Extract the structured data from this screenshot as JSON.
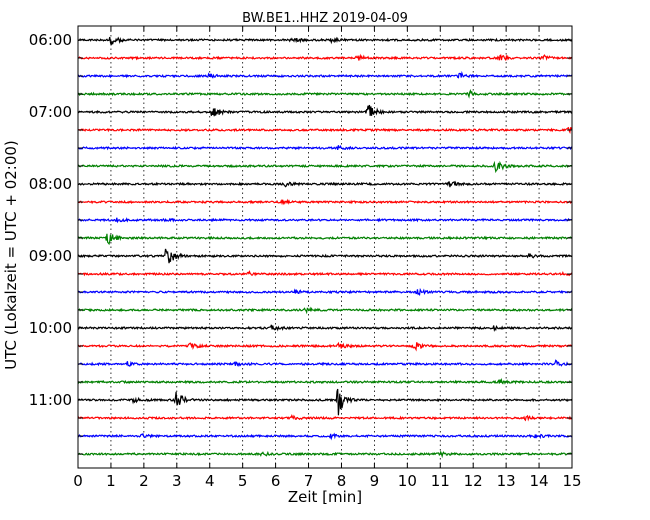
{
  "chart_data": {
    "type": "line",
    "title": "BW.BE1..HHZ 2019-04-09",
    "xlabel": "Zeit  [min]",
    "ylabel": "UTC (Lokalzeit = UTC + 02:00)",
    "xlim": [
      0,
      15
    ],
    "x_ticks": [
      "0",
      "1",
      "2",
      "3",
      "4",
      "5",
      "6",
      "7",
      "8",
      "9",
      "10",
      "11",
      "12",
      "13",
      "14",
      "15"
    ],
    "y_ticks": [
      "06:00",
      "07:00",
      "08:00",
      "09:00",
      "10:00",
      "11:00"
    ],
    "grid": "vertical dotted",
    "trace_interval_min": 15,
    "series_colors": [
      "#000000",
      "#ff0000",
      "#0000ff",
      "#008000"
    ],
    "traces": [
      {
        "start": "06:00",
        "color": "#000000",
        "events": [
          [
            1.0,
            6
          ],
          [
            6.5,
            3
          ],
          [
            7.7,
            2
          ]
        ]
      },
      {
        "start": "06:15",
        "color": "#ff0000",
        "events": [
          [
            8.5,
            3
          ],
          [
            12.8,
            3
          ],
          [
            14.1,
            3
          ]
        ]
      },
      {
        "start": "06:30",
        "color": "#0000ff",
        "events": [
          [
            4.0,
            2
          ],
          [
            11.6,
            3
          ]
        ]
      },
      {
        "start": "06:45",
        "color": "#008000",
        "events": [
          [
            11.9,
            3
          ]
        ]
      },
      {
        "start": "07:00",
        "color": "#000000",
        "events": [
          [
            4.1,
            8
          ],
          [
            8.8,
            12
          ]
        ]
      },
      {
        "start": "07:15",
        "color": "#ff0000",
        "events": [
          [
            14.9,
            3
          ]
        ]
      },
      {
        "start": "07:30",
        "color": "#0000ff",
        "events": [
          [
            7.9,
            2
          ]
        ]
      },
      {
        "start": "07:45",
        "color": "#008000",
        "events": [
          [
            12.7,
            8
          ]
        ]
      },
      {
        "start": "08:00",
        "color": "#000000",
        "events": [
          [
            6.3,
            2
          ],
          [
            11.3,
            3
          ]
        ]
      },
      {
        "start": "08:15",
        "color": "#ff0000",
        "events": [
          [
            6.2,
            2
          ]
        ]
      },
      {
        "start": "08:30",
        "color": "#0000ff",
        "events": [
          [
            1.2,
            2
          ],
          [
            2.5,
            2
          ]
        ]
      },
      {
        "start": "08:45",
        "color": "#008000",
        "events": [
          [
            0.9,
            9
          ]
        ]
      },
      {
        "start": "09:00",
        "color": "#000000",
        "events": [
          [
            2.7,
            14
          ],
          [
            13.7,
            2
          ]
        ]
      },
      {
        "start": "09:15",
        "color": "#ff0000",
        "events": [
          [
            5.2,
            2
          ],
          [
            14.7,
            2
          ]
        ]
      },
      {
        "start": "09:30",
        "color": "#0000ff",
        "events": [
          [
            6.6,
            2
          ],
          [
            10.3,
            3
          ]
        ]
      },
      {
        "start": "09:45",
        "color": "#008000",
        "events": [
          [
            6.9,
            2
          ]
        ]
      },
      {
        "start": "10:00",
        "color": "#000000",
        "events": [
          [
            5.9,
            5
          ],
          [
            12.6,
            2
          ]
        ]
      },
      {
        "start": "10:15",
        "color": "#ff0000",
        "events": [
          [
            3.4,
            3
          ],
          [
            7.9,
            3
          ],
          [
            10.2,
            5
          ]
        ]
      },
      {
        "start": "10:30",
        "color": "#0000ff",
        "events": [
          [
            1.5,
            2
          ],
          [
            4.8,
            2
          ],
          [
            14.5,
            3
          ]
        ]
      },
      {
        "start": "10:45",
        "color": "#008000",
        "events": [
          [
            12.8,
            2
          ]
        ]
      },
      {
        "start": "11:00",
        "color": "#000000",
        "events": [
          [
            3.0,
            10
          ],
          [
            7.9,
            16
          ],
          [
            1.7,
            3
          ]
        ]
      },
      {
        "start": "11:15",
        "color": "#ff0000",
        "events": [
          [
            6.5,
            2
          ],
          [
            13.6,
            2
          ]
        ]
      },
      {
        "start": "11:30",
        "color": "#0000ff",
        "events": [
          [
            1.9,
            2
          ],
          [
            7.7,
            2
          ],
          [
            13.9,
            3
          ]
        ]
      },
      {
        "start": "11:45",
        "color": "#008000",
        "events": [
          [
            5.6,
            2
          ],
          [
            11.0,
            2
          ]
        ]
      }
    ]
  }
}
